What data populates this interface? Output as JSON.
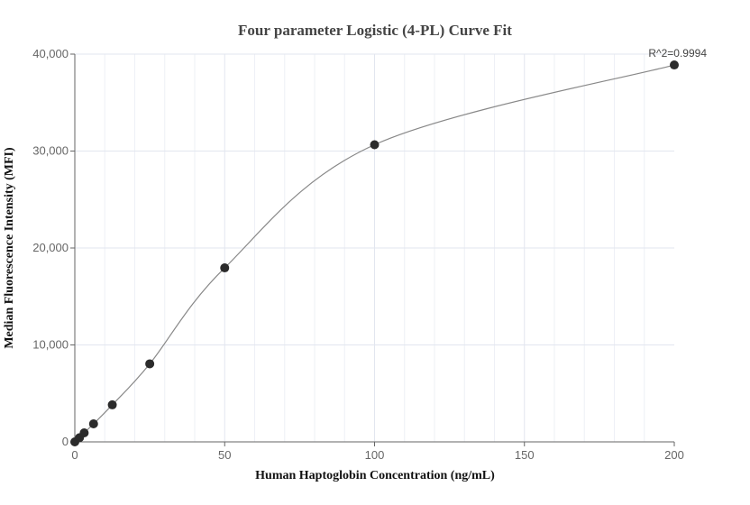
{
  "chart_data": {
    "type": "scatter",
    "title": "Four parameter Logistic (4-PL) Curve Fit",
    "xlabel": "Human Haptoglobin Concentration (ng/mL)",
    "ylabel": "Median Fluorescence Intensity (MFI)",
    "xlim": [
      0,
      200
    ],
    "ylim": [
      0,
      40000
    ],
    "x_ticks": [
      0,
      50,
      100,
      150,
      200
    ],
    "x_tick_labels": [
      "0",
      "50",
      "100",
      "150",
      "200"
    ],
    "y_ticks": [
      0,
      10000,
      20000,
      30000,
      40000
    ],
    "y_tick_labels": [
      "0",
      "10,000",
      "20,000",
      "30,000",
      "40,000"
    ],
    "grid": true,
    "annotation": "R^2=0.9994",
    "points": {
      "x": [
        0,
        1.5625,
        3.125,
        6.25,
        12.5,
        25,
        50,
        100,
        200
      ],
      "y": [
        0,
        430,
        930,
        1860,
        3820,
        8050,
        17950,
        30650,
        38880
      ]
    },
    "fit_curve": "4-PL",
    "colors": {
      "points": "#2b2b2b",
      "curve": "#888888",
      "grid": "#e6e9f2",
      "axis": "#666666"
    }
  }
}
